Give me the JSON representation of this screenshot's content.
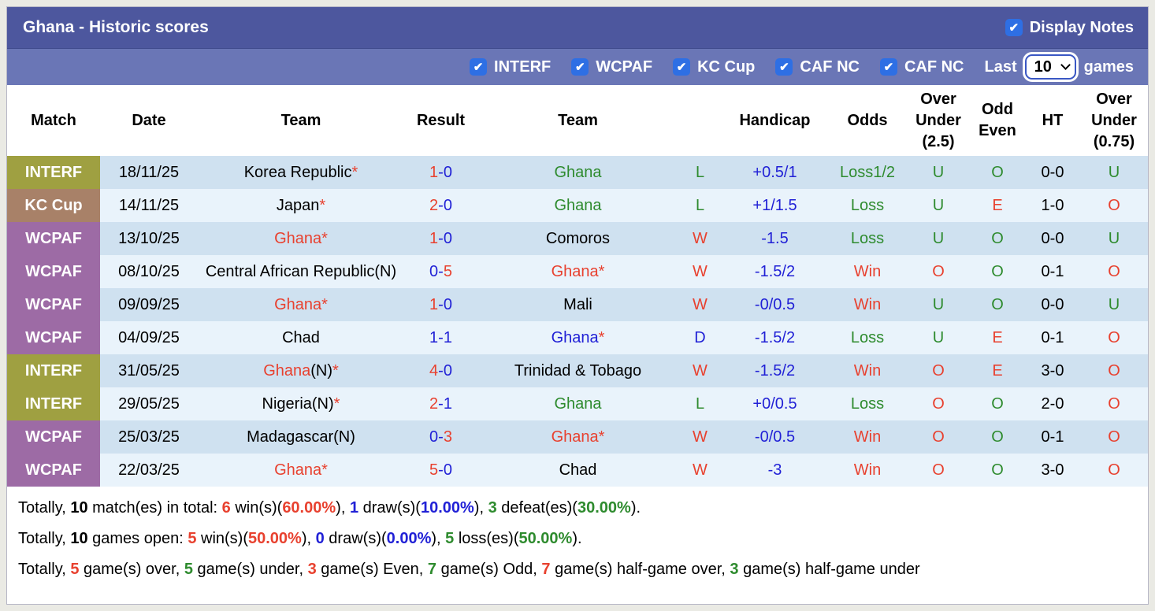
{
  "colors": {
    "red": "#e8412f",
    "green": "#2e8b2e",
    "blue": "#2121d6",
    "black": "#000000",
    "badge_interf": "#9fa041",
    "badge_kc_cup": "#a88168",
    "badge_wcpaf": "#9d6ba5",
    "titlebar_bg": "#4d579e",
    "filterbar_bg": "#6a76b6",
    "row_odd_bg": "#cfe1f0",
    "row_even_bg": "#e9f3fb",
    "checkbox_blue": "#2e6fe4"
  },
  "header": {
    "title": "Ghana - Historic scores",
    "display_notes_label": "Display Notes",
    "display_notes_checked": true
  },
  "filter_bar": {
    "competitions": [
      {
        "label": "INTERF",
        "checked": true
      },
      {
        "label": "WCPAF",
        "checked": true
      },
      {
        "label": "KC Cup",
        "checked": true
      },
      {
        "label": "CAF NC",
        "checked": true
      },
      {
        "label": "CAF NC",
        "checked": true
      }
    ],
    "last_label": "Last",
    "games_count": "10",
    "games_label": "games"
  },
  "table": {
    "columns": [
      {
        "id": "match",
        "lines": [
          "Match"
        ]
      },
      {
        "id": "date",
        "lines": [
          "Date"
        ]
      },
      {
        "id": "team-home",
        "lines": [
          "Team"
        ]
      },
      {
        "id": "result",
        "lines": [
          "Result"
        ]
      },
      {
        "id": "team-away",
        "lines": [
          "Team"
        ]
      },
      {
        "id": "wdl",
        "lines": [
          ""
        ]
      },
      {
        "id": "handicap",
        "lines": [
          "Handicap"
        ]
      },
      {
        "id": "odds",
        "lines": [
          "Odds"
        ]
      },
      {
        "id": "over-under-2-5",
        "lines": [
          "Over",
          "Under",
          "(2.5)"
        ]
      },
      {
        "id": "odd-even",
        "lines": [
          "Odd",
          "Even"
        ]
      },
      {
        "id": "ht",
        "lines": [
          "HT"
        ]
      },
      {
        "id": "over-under-0-75",
        "lines": [
          "Over",
          "Under",
          "(0.75)"
        ]
      }
    ],
    "rows": [
      {
        "badge": {
          "label": "INTERF",
          "key": "interf"
        },
        "date": "18/11/25",
        "home": [
          {
            "t": "Korea Republic",
            "c": "black"
          },
          {
            "t": "*",
            "c": "red"
          }
        ],
        "result": [
          {
            "t": "1",
            "c": "red"
          },
          {
            "t": "-0",
            "c": "blue"
          }
        ],
        "away": [
          {
            "t": "Ghana",
            "c": "green"
          }
        ],
        "wdl": {
          "t": "L",
          "c": "green"
        },
        "handicap": {
          "t": "+0.5/1",
          "c": "blue"
        },
        "odds": {
          "t": "Loss1/2",
          "c": "green"
        },
        "ou25": {
          "t": "U",
          "c": "green"
        },
        "odd_even": {
          "t": "O",
          "c": "green"
        },
        "ht": {
          "t": "0-0",
          "c": "black"
        },
        "ou075": {
          "t": "U",
          "c": "green"
        }
      },
      {
        "badge": {
          "label": "KC Cup",
          "key": "kc_cup"
        },
        "date": "14/11/25",
        "home": [
          {
            "t": "Japan",
            "c": "black"
          },
          {
            "t": "*",
            "c": "red"
          }
        ],
        "result": [
          {
            "t": "2",
            "c": "red"
          },
          {
            "t": "-0",
            "c": "blue"
          }
        ],
        "away": [
          {
            "t": "Ghana",
            "c": "green"
          }
        ],
        "wdl": {
          "t": "L",
          "c": "green"
        },
        "handicap": {
          "t": "+1/1.5",
          "c": "blue"
        },
        "odds": {
          "t": "Loss",
          "c": "green"
        },
        "ou25": {
          "t": "U",
          "c": "green"
        },
        "odd_even": {
          "t": "E",
          "c": "red"
        },
        "ht": {
          "t": "1-0",
          "c": "black"
        },
        "ou075": {
          "t": "O",
          "c": "red"
        }
      },
      {
        "badge": {
          "label": "WCPAF",
          "key": "wcpaf"
        },
        "date": "13/10/25",
        "home": [
          {
            "t": "Ghana",
            "c": "red"
          },
          {
            "t": "*",
            "c": "red"
          }
        ],
        "result": [
          {
            "t": "1",
            "c": "red"
          },
          {
            "t": "-0",
            "c": "blue"
          }
        ],
        "away": [
          {
            "t": "Comoros",
            "c": "black"
          }
        ],
        "wdl": {
          "t": "W",
          "c": "red"
        },
        "handicap": {
          "t": "-1.5",
          "c": "blue"
        },
        "odds": {
          "t": "Loss",
          "c": "green"
        },
        "ou25": {
          "t": "U",
          "c": "green"
        },
        "odd_even": {
          "t": "O",
          "c": "green"
        },
        "ht": {
          "t": "0-0",
          "c": "black"
        },
        "ou075": {
          "t": "U",
          "c": "green"
        }
      },
      {
        "badge": {
          "label": "WCPAF",
          "key": "wcpaf"
        },
        "date": "08/10/25",
        "home": [
          {
            "t": "Central African Republic(N)",
            "c": "black"
          }
        ],
        "result": [
          {
            "t": "0-",
            "c": "blue"
          },
          {
            "t": "5",
            "c": "red"
          }
        ],
        "away": [
          {
            "t": "Ghana",
            "c": "red"
          },
          {
            "t": "*",
            "c": "red"
          }
        ],
        "wdl": {
          "t": "W",
          "c": "red"
        },
        "handicap": {
          "t": "-1.5/2",
          "c": "blue"
        },
        "odds": {
          "t": "Win",
          "c": "red"
        },
        "ou25": {
          "t": "O",
          "c": "red"
        },
        "odd_even": {
          "t": "O",
          "c": "green"
        },
        "ht": {
          "t": "0-1",
          "c": "black"
        },
        "ou075": {
          "t": "O",
          "c": "red"
        }
      },
      {
        "badge": {
          "label": "WCPAF",
          "key": "wcpaf"
        },
        "date": "09/09/25",
        "home": [
          {
            "t": "Ghana",
            "c": "red"
          },
          {
            "t": "*",
            "c": "red"
          }
        ],
        "result": [
          {
            "t": "1",
            "c": "red"
          },
          {
            "t": "-0",
            "c": "blue"
          }
        ],
        "away": [
          {
            "t": "Mali",
            "c": "black"
          }
        ],
        "wdl": {
          "t": "W",
          "c": "red"
        },
        "handicap": {
          "t": "-0/0.5",
          "c": "blue"
        },
        "odds": {
          "t": "Win",
          "c": "red"
        },
        "ou25": {
          "t": "U",
          "c": "green"
        },
        "odd_even": {
          "t": "O",
          "c": "green"
        },
        "ht": {
          "t": "0-0",
          "c": "black"
        },
        "ou075": {
          "t": "U",
          "c": "green"
        }
      },
      {
        "badge": {
          "label": "WCPAF",
          "key": "wcpaf"
        },
        "date": "04/09/25",
        "home": [
          {
            "t": "Chad",
            "c": "black"
          }
        ],
        "result": [
          {
            "t": "1-1",
            "c": "blue"
          }
        ],
        "away": [
          {
            "t": "Ghana",
            "c": "blue"
          },
          {
            "t": "*",
            "c": "red"
          }
        ],
        "wdl": {
          "t": "D",
          "c": "blue"
        },
        "handicap": {
          "t": "-1.5/2",
          "c": "blue"
        },
        "odds": {
          "t": "Loss",
          "c": "green"
        },
        "ou25": {
          "t": "U",
          "c": "green"
        },
        "odd_even": {
          "t": "E",
          "c": "red"
        },
        "ht": {
          "t": "0-1",
          "c": "black"
        },
        "ou075": {
          "t": "O",
          "c": "red"
        }
      },
      {
        "badge": {
          "label": "INTERF",
          "key": "interf"
        },
        "date": "31/05/25",
        "home": [
          {
            "t": "Ghana",
            "c": "red"
          },
          {
            "t": "(N)",
            "c": "black"
          },
          {
            "t": "*",
            "c": "red"
          }
        ],
        "result": [
          {
            "t": "4",
            "c": "red"
          },
          {
            "t": "-0",
            "c": "blue"
          }
        ],
        "away": [
          {
            "t": "Trinidad & Tobago",
            "c": "black"
          }
        ],
        "wdl": {
          "t": "W",
          "c": "red"
        },
        "handicap": {
          "t": "-1.5/2",
          "c": "blue"
        },
        "odds": {
          "t": "Win",
          "c": "red"
        },
        "ou25": {
          "t": "O",
          "c": "red"
        },
        "odd_even": {
          "t": "E",
          "c": "red"
        },
        "ht": {
          "t": "3-0",
          "c": "black"
        },
        "ou075": {
          "t": "O",
          "c": "red"
        }
      },
      {
        "badge": {
          "label": "INTERF",
          "key": "interf"
        },
        "date": "29/05/25",
        "home": [
          {
            "t": "Nigeria(N)",
            "c": "black"
          },
          {
            "t": "*",
            "c": "red"
          }
        ],
        "result": [
          {
            "t": "2",
            "c": "red"
          },
          {
            "t": "-1",
            "c": "blue"
          }
        ],
        "away": [
          {
            "t": "Ghana",
            "c": "green"
          }
        ],
        "wdl": {
          "t": "L",
          "c": "green"
        },
        "handicap": {
          "t": "+0/0.5",
          "c": "blue"
        },
        "odds": {
          "t": "Loss",
          "c": "green"
        },
        "ou25": {
          "t": "O",
          "c": "red"
        },
        "odd_even": {
          "t": "O",
          "c": "green"
        },
        "ht": {
          "t": "2-0",
          "c": "black"
        },
        "ou075": {
          "t": "O",
          "c": "red"
        }
      },
      {
        "badge": {
          "label": "WCPAF",
          "key": "wcpaf"
        },
        "date": "25/03/25",
        "home": [
          {
            "t": "Madagascar(N)",
            "c": "black"
          }
        ],
        "result": [
          {
            "t": "0-",
            "c": "blue"
          },
          {
            "t": "3",
            "c": "red"
          }
        ],
        "away": [
          {
            "t": "Ghana",
            "c": "red"
          },
          {
            "t": "*",
            "c": "red"
          }
        ],
        "wdl": {
          "t": "W",
          "c": "red"
        },
        "handicap": {
          "t": "-0/0.5",
          "c": "blue"
        },
        "odds": {
          "t": "Win",
          "c": "red"
        },
        "ou25": {
          "t": "O",
          "c": "red"
        },
        "odd_even": {
          "t": "O",
          "c": "green"
        },
        "ht": {
          "t": "0-1",
          "c": "black"
        },
        "ou075": {
          "t": "O",
          "c": "red"
        }
      },
      {
        "badge": {
          "label": "WCPAF",
          "key": "wcpaf"
        },
        "date": "22/03/25",
        "home": [
          {
            "t": "Ghana",
            "c": "red"
          },
          {
            "t": "*",
            "c": "red"
          }
        ],
        "result": [
          {
            "t": "5",
            "c": "red"
          },
          {
            "t": "-0",
            "c": "blue"
          }
        ],
        "away": [
          {
            "t": "Chad",
            "c": "black"
          }
        ],
        "wdl": {
          "t": "W",
          "c": "red"
        },
        "handicap": {
          "t": "-3",
          "c": "blue"
        },
        "odds": {
          "t": "Win",
          "c": "red"
        },
        "ou25": {
          "t": "O",
          "c": "red"
        },
        "odd_even": {
          "t": "O",
          "c": "green"
        },
        "ht": {
          "t": "3-0",
          "c": "black"
        },
        "ou075": {
          "t": "O",
          "c": "red"
        }
      }
    ]
  },
  "footer": {
    "lines": [
      [
        {
          "t": "Totally, ",
          "c": "black"
        },
        {
          "t": "10",
          "c": "black",
          "b": true
        },
        {
          "t": " match(es) in total: ",
          "c": "black"
        },
        {
          "t": "6",
          "c": "red",
          "b": true
        },
        {
          "t": " win(s)(",
          "c": "black"
        },
        {
          "t": "60.00%",
          "c": "red",
          "b": true
        },
        {
          "t": "), ",
          "c": "black"
        },
        {
          "t": "1",
          "c": "blue",
          "b": true
        },
        {
          "t": " draw(s)(",
          "c": "black"
        },
        {
          "t": "10.00%",
          "c": "blue",
          "b": true
        },
        {
          "t": "), ",
          "c": "black"
        },
        {
          "t": "3",
          "c": "green",
          "b": true
        },
        {
          "t": " defeat(es)(",
          "c": "black"
        },
        {
          "t": "30.00%",
          "c": "green",
          "b": true
        },
        {
          "t": ").",
          "c": "black"
        }
      ],
      [
        {
          "t": "Totally, ",
          "c": "black"
        },
        {
          "t": "10",
          "c": "black",
          "b": true
        },
        {
          "t": " games open: ",
          "c": "black"
        },
        {
          "t": "5",
          "c": "red",
          "b": true
        },
        {
          "t": " win(s)(",
          "c": "black"
        },
        {
          "t": "50.00%",
          "c": "red",
          "b": true
        },
        {
          "t": "), ",
          "c": "black"
        },
        {
          "t": "0",
          "c": "blue",
          "b": true
        },
        {
          "t": " draw(s)(",
          "c": "black"
        },
        {
          "t": "0.00%",
          "c": "blue",
          "b": true
        },
        {
          "t": "), ",
          "c": "black"
        },
        {
          "t": "5",
          "c": "green",
          "b": true
        },
        {
          "t": " loss(es)(",
          "c": "black"
        },
        {
          "t": "50.00%",
          "c": "green",
          "b": true
        },
        {
          "t": ").",
          "c": "black"
        }
      ],
      [
        {
          "t": "Totally, ",
          "c": "black"
        },
        {
          "t": "5",
          "c": "red",
          "b": true
        },
        {
          "t": " game(s) over, ",
          "c": "black"
        },
        {
          "t": "5",
          "c": "green",
          "b": true
        },
        {
          "t": " game(s) under, ",
          "c": "black"
        },
        {
          "t": "3",
          "c": "red",
          "b": true
        },
        {
          "t": " game(s) Even, ",
          "c": "black"
        },
        {
          "t": "7",
          "c": "green",
          "b": true
        },
        {
          "t": " game(s) Odd, ",
          "c": "black"
        },
        {
          "t": "7",
          "c": "red",
          "b": true
        },
        {
          "t": " game(s) half-game over, ",
          "c": "black"
        },
        {
          "t": "3",
          "c": "green",
          "b": true
        },
        {
          "t": " game(s) half-game under",
          "c": "black"
        }
      ]
    ]
  }
}
